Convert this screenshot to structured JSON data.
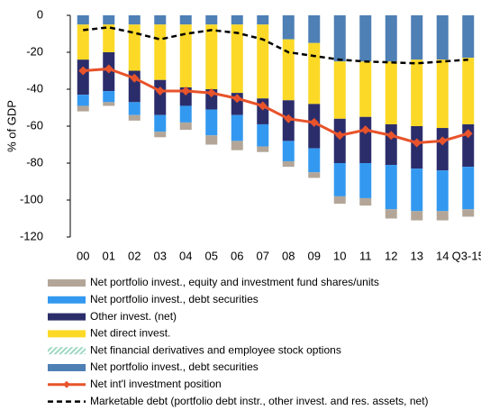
{
  "chart_data": {
    "type": "bar",
    "y_label": "% of GDP",
    "categories": [
      "00",
      "01",
      "02",
      "03",
      "04",
      "05",
      "06",
      "07",
      "08",
      "09",
      "10",
      "11",
      "12",
      "13",
      "14",
      "Q3-15"
    ],
    "ylim": [
      -120,
      0
    ],
    "yticks": [
      0,
      -20,
      -40,
      -60,
      -80,
      -100,
      -120
    ],
    "series": [
      {
        "name": "Net portfolio invest., equity and investment fund shares/units",
        "color": "#b3a698",
        "values": [
          -3,
          -2,
          -3,
          -3,
          -4,
          -5,
          -5,
          -3,
          -3,
          -3,
          -4,
          -4,
          -5,
          -5,
          -5,
          -4
        ]
      },
      {
        "name": "Net portfolio invest., debt securities",
        "color": "#3399f0",
        "values": [
          -6,
          -6,
          -7,
          -9,
          -9,
          -14,
          -14,
          -12,
          -11,
          -13,
          -18,
          -19,
          -24,
          -23,
          -22,
          -23
        ]
      },
      {
        "name": "Other invest. (net)",
        "color": "#2b2d6b",
        "values": [
          -19,
          -21,
          -17,
          -19,
          -10,
          -11,
          -12,
          -14,
          -22,
          -24,
          -24,
          -25,
          -22,
          -23,
          -23,
          -23
        ]
      },
      {
        "name": "Net direct invest.",
        "color": "#fcd926",
        "values": [
          -19,
          -15,
          -25,
          -30,
          -34,
          -35,
          -37,
          -40,
          -33,
          -33,
          -31,
          -30,
          -34,
          -36,
          -37,
          -36
        ]
      },
      {
        "name": "Net financial derivatives and employee stock options",
        "color": "#9fd8c2",
        "hatch": true,
        "values": [
          0,
          0,
          0,
          0,
          0,
          0,
          0,
          0,
          0,
          0,
          0,
          0,
          0,
          0,
          0,
          0
        ]
      },
      {
        "name": "Net portfolio invest., debt securities",
        "color": "#4e7fb5",
        "values": [
          -5,
          -5,
          -5,
          -5,
          -5,
          -5,
          -5,
          -5,
          -13,
          -15,
          -25,
          -25,
          -25,
          -24,
          -24,
          -23
        ]
      },
      {
        "name": "Net int'l investment position",
        "color": "#e8532b",
        "type": "line",
        "marker": "diamond",
        "values": [
          -30,
          -29,
          -34,
          -41,
          -41,
          -42,
          -45,
          -49,
          -56,
          -58,
          -65,
          -62,
          -65,
          -69,
          -68,
          -64
        ]
      },
      {
        "name": "Marketable debt (portfolio debt instr., other invest. and res. assets, net)",
        "color": "#000000",
        "type": "line",
        "dash": true,
        "values": [
          -8,
          -6.5,
          -9.5,
          -13,
          -10,
          -8,
          -9.5,
          -13,
          -20,
          -22,
          -24,
          -25,
          -25.5,
          -26,
          -25,
          -24
        ]
      }
    ]
  }
}
